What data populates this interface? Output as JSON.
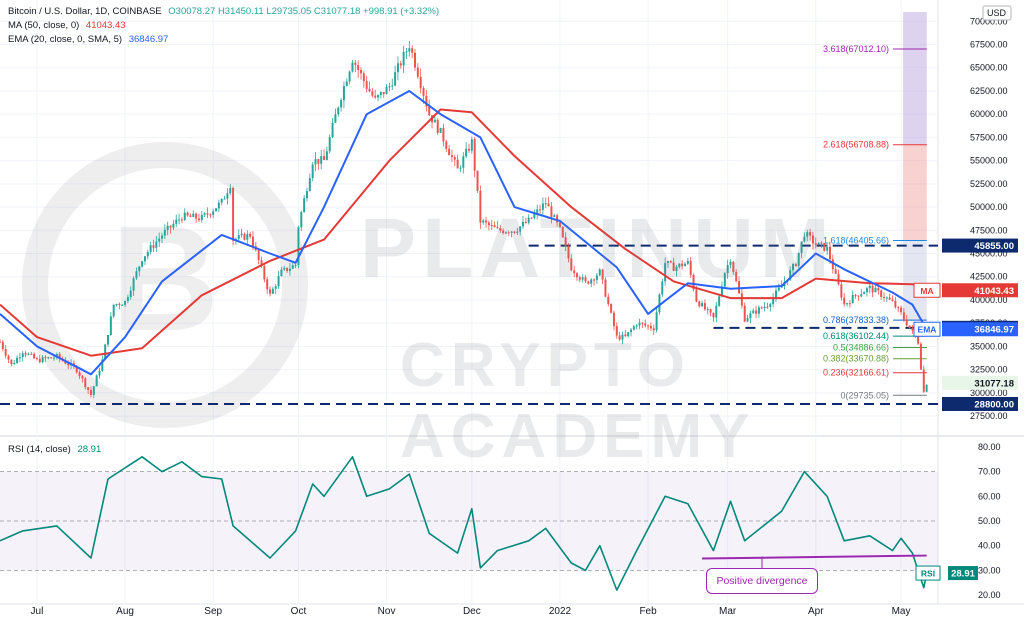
{
  "legend": {
    "title": "Bitcoin / U.S. Dollar, 1D, COINBASE",
    "open": "O30078.27",
    "high": "H31450.11",
    "low": "L29735.05",
    "close": "C31077.18",
    "change": "+998.91 (+3.32%)",
    "ma_label": "MA (50, close, 0)",
    "ma_value": "41043.43",
    "ema_label": "EMA (20, close, 0, SMA, 5)",
    "ema_value": "36846.97",
    "rsi_label": "RSI (14, close)",
    "rsi_value": "28.91"
  },
  "currency": "USD",
  "watermark": {
    "line1": "PLATINUM",
    "line2": "CRYPTO ACADEMY"
  },
  "annotation": "Positive divergence",
  "colors": {
    "up": "#26a69a",
    "down": "#ef5350",
    "ma": "#e53935",
    "ema": "#2962ff",
    "rsi": "#00897b",
    "divergence": "#9c27b0",
    "level": "#0d2a6e"
  },
  "chart_data": [
    {
      "type": "candlestick",
      "x_ticks": [
        "Jul",
        "Aug",
        "Sep",
        "Oct",
        "Nov",
        "Dec",
        "2022",
        "Feb",
        "Mar",
        "Apr",
        "May"
      ],
      "y_ticks": [
        27500,
        30000,
        32500,
        35000,
        37500,
        40000,
        42500,
        45000,
        47500,
        50000,
        52500,
        55000,
        57500,
        60000,
        62500,
        65000,
        67500,
        70000
      ],
      "y_tick_labels": [
        "27500.00",
        "30000.00",
        "32500.00",
        "35000.00",
        "37500.00",
        "40000.00",
        "42500.00",
        "45000.00",
        "47500.00",
        "50000.00",
        "52500.00",
        "55000.00",
        "57500.00",
        "60000.00",
        "62500.00",
        "65000.00",
        "67500.00",
        "70000.00"
      ],
      "ylim": [
        26000,
        71000
      ],
      "close_path": [
        [
          "Jun 18",
          35500
        ],
        [
          "Jun 22",
          33000
        ],
        [
          "Jun 26",
          34500
        ],
        [
          "Jul 1",
          33500
        ],
        [
          "Jul 8",
          33900
        ],
        [
          "Jul 15",
          32500
        ],
        [
          "Jul 20",
          29800
        ],
        [
          "Jul 24",
          33500
        ],
        [
          "Jul 28",
          39500
        ],
        [
          "Aug 1",
          39800
        ],
        [
          "Aug 7",
          44500
        ],
        [
          "Aug 14",
          47000
        ],
        [
          "Aug 21",
          49000
        ],
        [
          "Aug 28",
          48800
        ],
        [
          "Sep 4",
          50500
        ],
        [
          "Sep 7",
          52500
        ],
        [
          "Sep 8",
          46500
        ],
        [
          "Sep 14",
          47000
        ],
        [
          "Sep 21",
          40500
        ],
        [
          "Sep 25",
          43000
        ],
        [
          "Sep 30",
          43800
        ],
        [
          "Oct 1",
          48000
        ],
        [
          "Oct 6",
          55000
        ],
        [
          "Oct 10",
          55000
        ],
        [
          "Oct 15",
          61000
        ],
        [
          "Oct 20",
          66000
        ],
        [
          "Oct 25",
          63000
        ],
        [
          "Oct 28",
          61500
        ],
        [
          "Nov 2",
          63000
        ],
        [
          "Nov 9",
          67500
        ],
        [
          "Nov 12",
          64500
        ],
        [
          "Nov 16",
          60000
        ],
        [
          "Nov 20",
          58000
        ],
        [
          "Nov 26",
          54000
        ],
        [
          "Dec 1",
          57000
        ],
        [
          "Dec 4",
          48500
        ],
        [
          "Dec 10",
          47500
        ],
        [
          "Dec 16",
          47500
        ],
        [
          "Dec 21",
          48500
        ],
        [
          "Dec 27",
          50500
        ],
        [
          "Jan 1",
          47500
        ],
        [
          "Jan 5",
          43500
        ],
        [
          "Jan 10",
          41800
        ],
        [
          "Jan 15",
          43000
        ],
        [
          "Jan 21",
          36000
        ],
        [
          "Jan 24",
          36000
        ],
        [
          "Jan 28",
          37500
        ],
        [
          "Feb 3",
          37000
        ],
        [
          "Feb 7",
          44000
        ],
        [
          "Feb 10",
          43500
        ],
        [
          "Feb 15",
          44000
        ],
        [
          "Feb 18",
          40000
        ],
        [
          "Feb 24",
          38000
        ],
        [
          "Feb 28",
          43000
        ],
        [
          "Mar 2",
          44500
        ],
        [
          "Mar 7",
          38000
        ],
        [
          "Mar 11",
          38800
        ],
        [
          "Mar 15",
          39500
        ],
        [
          "Mar 20",
          41500
        ],
        [
          "Mar 25",
          44000
        ],
        [
          "Mar 28",
          47200
        ],
        [
          "Apr 1",
          46000
        ],
        [
          "Apr 5",
          45500
        ],
        [
          "Apr 8",
          42500
        ],
        [
          "Apr 11",
          39500
        ],
        [
          "Apr 15",
          40500
        ],
        [
          "Apr 20",
          41300
        ],
        [
          "Apr 25",
          40400
        ],
        [
          "Apr 28",
          39700
        ],
        [
          "May 1",
          38500
        ],
        [
          "May 5",
          36500
        ],
        [
          "May 7",
          35500
        ],
        [
          "May 9",
          30100
        ],
        [
          "May 10",
          31077
        ]
      ]
    },
    {
      "type": "line",
      "series": [
        {
          "name": "MA (50, close, 0)",
          "value": 41043.43,
          "values": [
            [
              "Jun 18",
              39500
            ],
            [
              "Jul 1",
              36000
            ],
            [
              "Jul 20",
              34000
            ],
            [
              "Aug 7",
              34800
            ],
            [
              "Aug 28",
              40500
            ],
            [
              "Sep 21",
              44200
            ],
            [
              "Oct 10",
              46500
            ],
            [
              "Nov 2",
              55000
            ],
            [
              "Nov 20",
              60500
            ],
            [
              "Dec 1",
              60200
            ],
            [
              "Dec 16",
              55500
            ],
            [
              "Jan 5",
              50000
            ],
            [
              "Jan 24",
              45500
            ],
            [
              "Feb 10",
              42000
            ],
            [
              "Mar 2",
              40200
            ],
            [
              "Mar 20",
              40200
            ],
            [
              "Apr 1",
              42300
            ],
            [
              "Apr 20",
              41800
            ],
            [
              "May 5",
              41700
            ],
            [
              "May 10",
              41043
            ]
          ]
        },
        {
          "name": "EMA (20, close, 0, SMA, 5)",
          "value": 36846.97,
          "values": [
            [
              "Jun 18",
              38500
            ],
            [
              "Jul 1",
              35000
            ],
            [
              "Jul 20",
              32000
            ],
            [
              "Aug 1",
              36000
            ],
            [
              "Aug 14",
              42000
            ],
            [
              "Sep 4",
              47000
            ],
            [
              "Sep 21",
              45000
            ],
            [
              "Sep 30",
              44000
            ],
            [
              "Oct 10",
              50000
            ],
            [
              "Oct 25",
              60000
            ],
            [
              "Nov 9",
              62500
            ],
            [
              "Nov 20",
              60000
            ],
            [
              "Dec 4",
              57500
            ],
            [
              "Dec 16",
              50000
            ],
            [
              "Jan 1",
              48500
            ],
            [
              "Jan 21",
              43500
            ],
            [
              "Feb 1",
              38500
            ],
            [
              "Feb 15",
              41800
            ],
            [
              "Mar 2",
              41200
            ],
            [
              "Mar 20",
              41500
            ],
            [
              "Apr 1",
              45000
            ],
            [
              "Apr 11",
              43300
            ],
            [
              "Apr 28",
              40800
            ],
            [
              "May 5",
              39500
            ],
            [
              "May 10",
              36847
            ]
          ]
        }
      ]
    },
    {
      "type": "fibonacci",
      "levels": [
        {
          "ratio": "3.618",
          "price": 67012.1,
          "label": "3.618(67012.10)"
        },
        {
          "ratio": "2.618",
          "price": 56708.88,
          "label": "2.618(56708.88)"
        },
        {
          "ratio": "1.618",
          "price": 46405.66,
          "label": "1.618(46405.66)"
        },
        {
          "ratio": "0.786",
          "price": 37833.38,
          "label": "0.786(37833.38)"
        },
        {
          "ratio": "0.618",
          "price": 36102.44,
          "label": "0.618(36102.44)"
        },
        {
          "ratio": "0.5",
          "price": 34886.66,
          "label": "0.5(34886.66)"
        },
        {
          "ratio": "0.382",
          "price": 33670.88,
          "label": "0.382(33670.88)"
        },
        {
          "ratio": "0.236",
          "price": 32166.61,
          "label": "0.236(32166.61)"
        },
        {
          "ratio": "0",
          "price": 29735.05,
          "label": "0(29735.05)"
        }
      ]
    },
    {
      "type": "line",
      "name": "RSI (14, close)",
      "y_ticks": [
        20,
        30,
        40,
        50,
        60,
        70,
        80
      ],
      "y_tick_labels": [
        "20.00",
        "30.00",
        "40.00",
        "50.00",
        "60.00",
        "70.00",
        "80.00"
      ],
      "ylim": [
        18,
        82
      ],
      "bands": [
        30,
        50,
        70
      ],
      "value": 28.91,
      "values": [
        [
          "Jun 18",
          42
        ],
        [
          "Jun 26",
          46
        ],
        [
          "Jul 8",
          48
        ],
        [
          "Jul 20",
          35
        ],
        [
          "Jul 26",
          67
        ],
        [
          "Aug 7",
          76
        ],
        [
          "Aug 14",
          70
        ],
        [
          "Aug 21",
          74
        ],
        [
          "Aug 28",
          68
        ],
        [
          "Sep 4",
          67
        ],
        [
          "Sep 8",
          48
        ],
        [
          "Sep 21",
          35
        ],
        [
          "Sep 30",
          46
        ],
        [
          "Oct 6",
          65
        ],
        [
          "Oct 10",
          60
        ],
        [
          "Oct 20",
          76
        ],
        [
          "Oct 25",
          60
        ],
        [
          "Nov 2",
          63
        ],
        [
          "Nov 9",
          69
        ],
        [
          "Nov 16",
          45
        ],
        [
          "Nov 26",
          37
        ],
        [
          "Dec 1",
          55
        ],
        [
          "Dec 4",
          31
        ],
        [
          "Dec 10",
          38
        ],
        [
          "Dec 21",
          42
        ],
        [
          "Dec 27",
          47
        ],
        [
          "Jan 5",
          33
        ],
        [
          "Jan 10",
          30
        ],
        [
          "Jan 15",
          40
        ],
        [
          "Jan 21",
          22
        ],
        [
          "Jan 28",
          38
        ],
        [
          "Feb 7",
          60
        ],
        [
          "Feb 15",
          57
        ],
        [
          "Feb 24",
          38
        ],
        [
          "Mar 2",
          58
        ],
        [
          "Mar 7",
          42
        ],
        [
          "Mar 20",
          54
        ],
        [
          "Mar 28",
          70
        ],
        [
          "Apr 5",
          60
        ],
        [
          "Apr 11",
          42
        ],
        [
          "Apr 20",
          44
        ],
        [
          "Apr 28",
          38
        ],
        [
          "May 1",
          43
        ],
        [
          "May 5",
          37
        ],
        [
          "May 9",
          23
        ],
        [
          "May 10",
          28.91
        ]
      ],
      "trendline": [
        [
          "Feb 20",
          34.8
        ],
        [
          "May 10",
          36
        ]
      ]
    }
  ],
  "price_badges": [
    {
      "label": "45855.00",
      "price": 45855,
      "kind": "level"
    },
    {
      "label": "41043.43",
      "price": 41043.43,
      "kind": "ma",
      "tag": "MA"
    },
    {
      "label": "37000.00",
      "price": 37000,
      "kind": "level"
    },
    {
      "label": "36846.97",
      "price": 36846.97,
      "kind": "ema",
      "tag": "EMA"
    },
    {
      "label": "31077.18",
      "price": 31077.18,
      "kind": "last"
    },
    {
      "label": "28800.00",
      "price": 28800,
      "kind": "level"
    }
  ],
  "rsi_badge": {
    "label": "28.91",
    "tag": "RSI"
  }
}
